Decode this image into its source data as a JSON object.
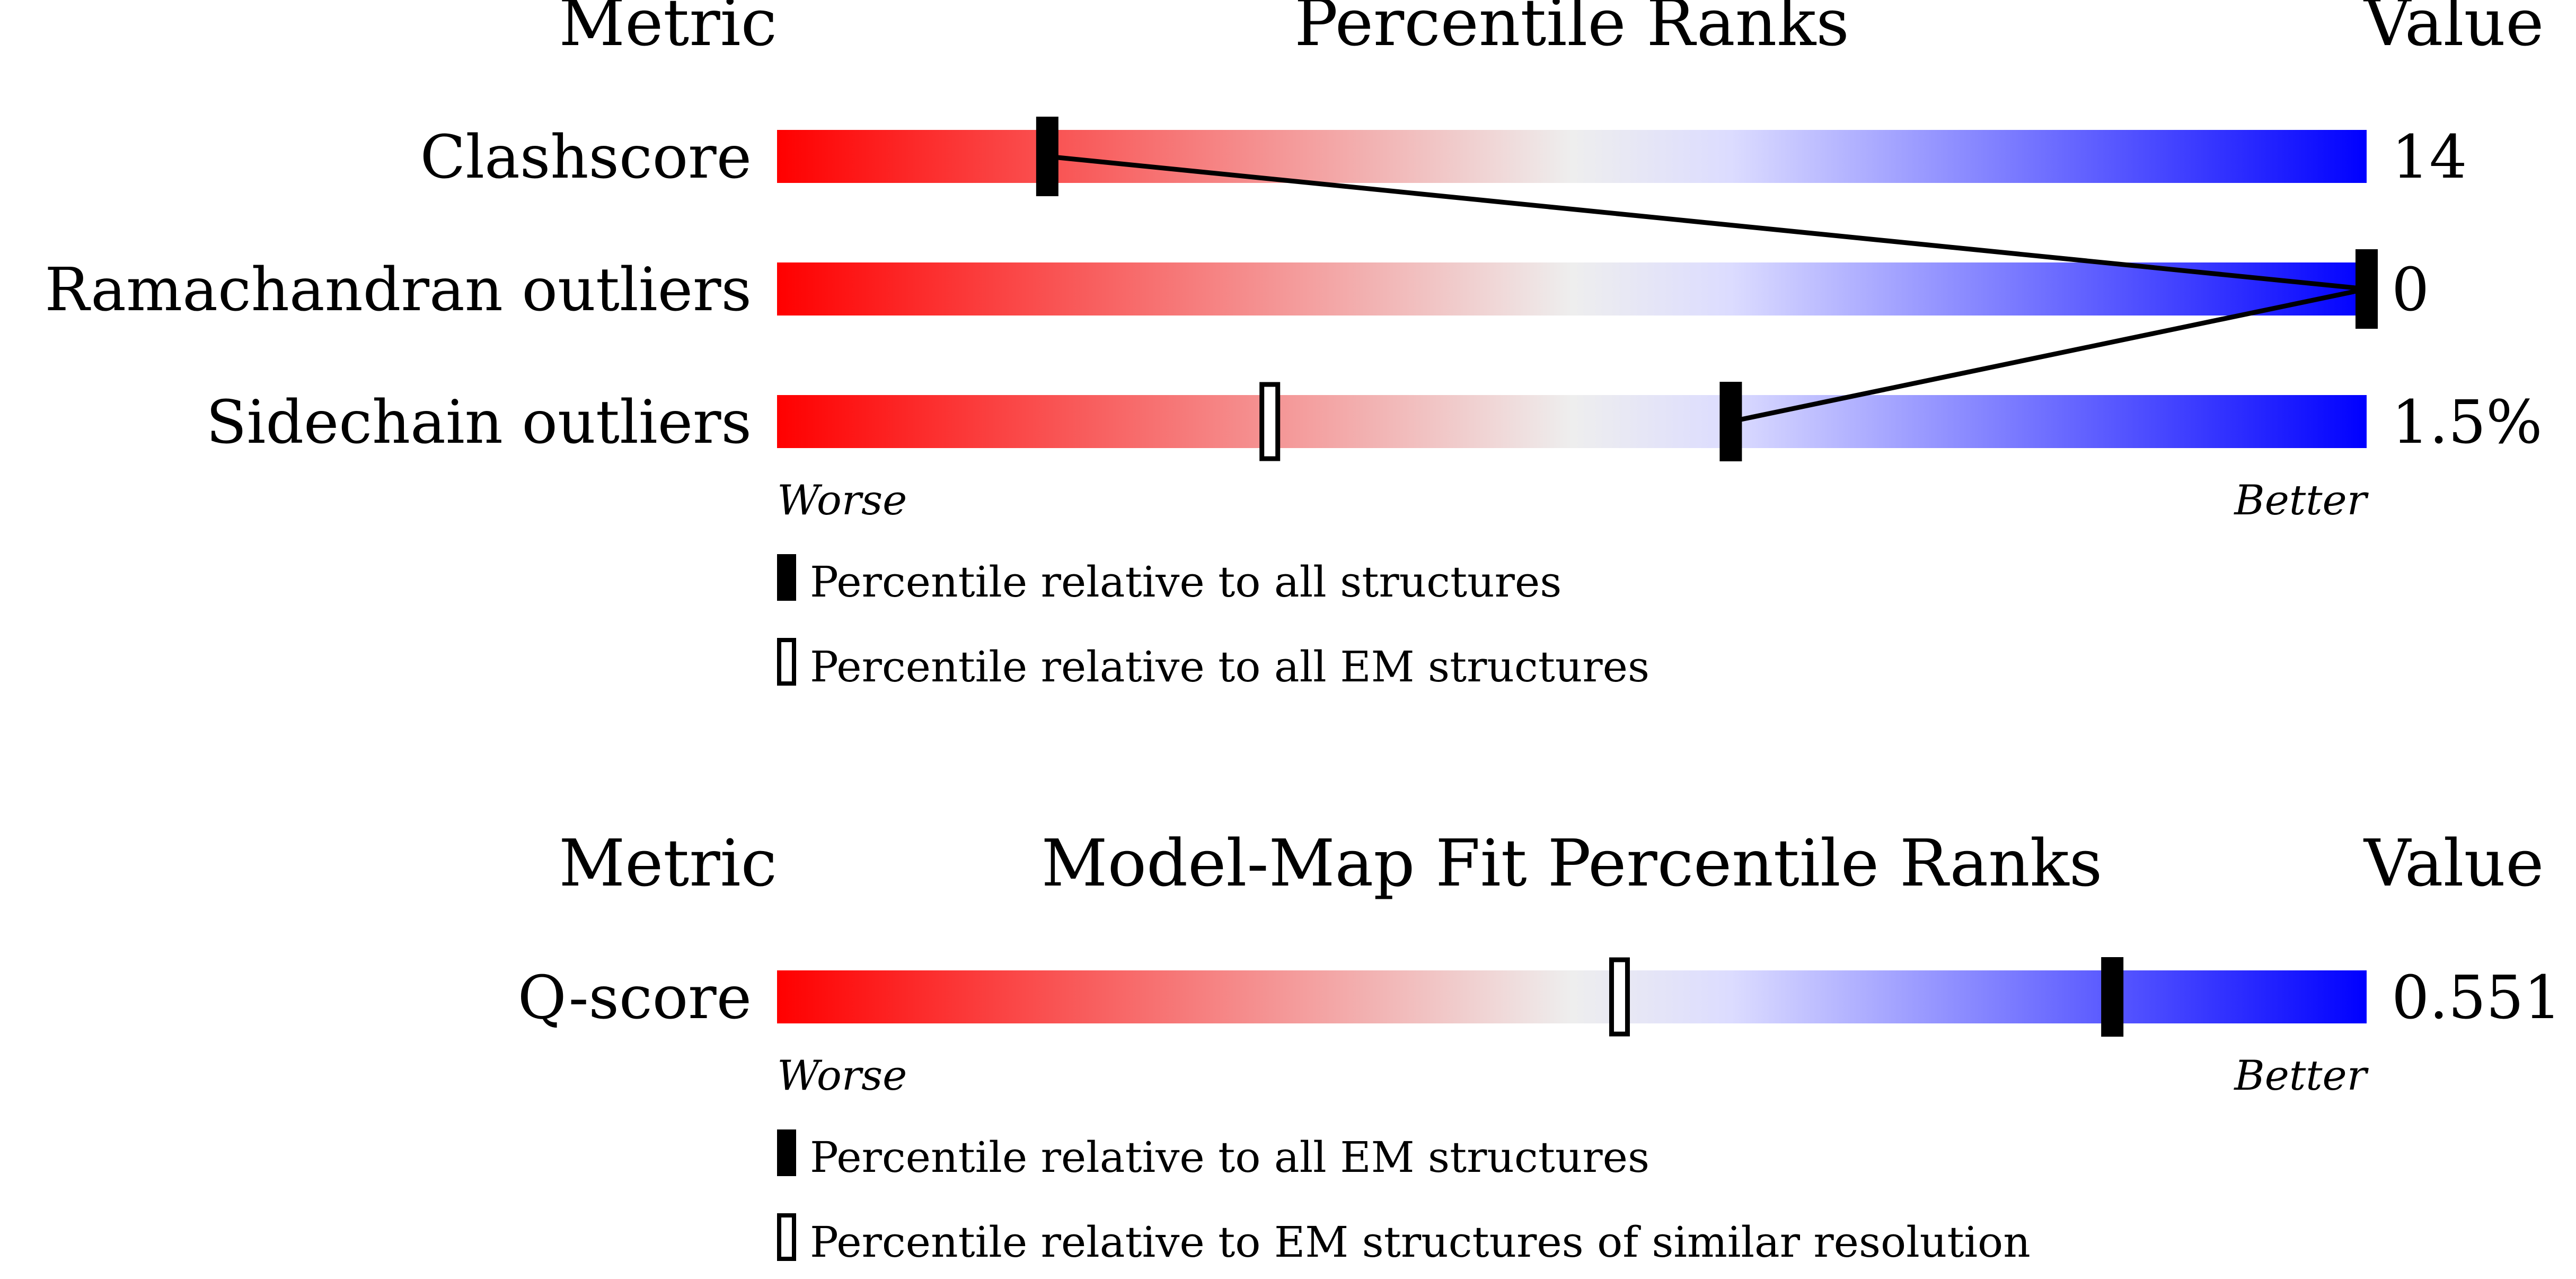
{
  "chart_data": [
    {
      "type": "percentile-bars",
      "header": {
        "metric": "Metric",
        "title": "Percentile Ranks",
        "value": "Value"
      },
      "xlim": [
        0,
        100
      ],
      "rows": [
        {
          "name": "Clashscore",
          "value": "14",
          "percentile_all": 17,
          "percentile_subset": null
        },
        {
          "name": "Ramachandran outliers",
          "value": "0",
          "percentile_all": 100,
          "percentile_subset": null
        },
        {
          "name": "Sidechain outliers",
          "value": "1.5%",
          "percentile_all": 60,
          "percentile_subset": 31
        }
      ],
      "axis_labels": {
        "left": "Worse",
        "right": "Better"
      },
      "legend": {
        "filled": "Percentile relative to all structures",
        "open": "Percentile relative to all EM structures"
      },
      "colors": {
        "worse": "#ff0000",
        "middle": "#eeeeee",
        "better": "#0000ff"
      }
    },
    {
      "type": "percentile-bars",
      "header": {
        "metric": "Metric",
        "title": "Model-Map Fit Percentile Ranks",
        "value": "Value"
      },
      "xlim": [
        0,
        100
      ],
      "rows": [
        {
          "name": "Q-score",
          "value": "0.551",
          "percentile_all": 84,
          "percentile_subset": 53
        }
      ],
      "axis_labels": {
        "left": "Worse",
        "right": "Better"
      },
      "legend": {
        "filled": "Percentile relative to all EM structures",
        "open": "Percentile relative to EM structures of similar resolution"
      },
      "colors": {
        "worse": "#ff0000",
        "middle": "#eeeeee",
        "better": "#0000ff"
      }
    }
  ]
}
